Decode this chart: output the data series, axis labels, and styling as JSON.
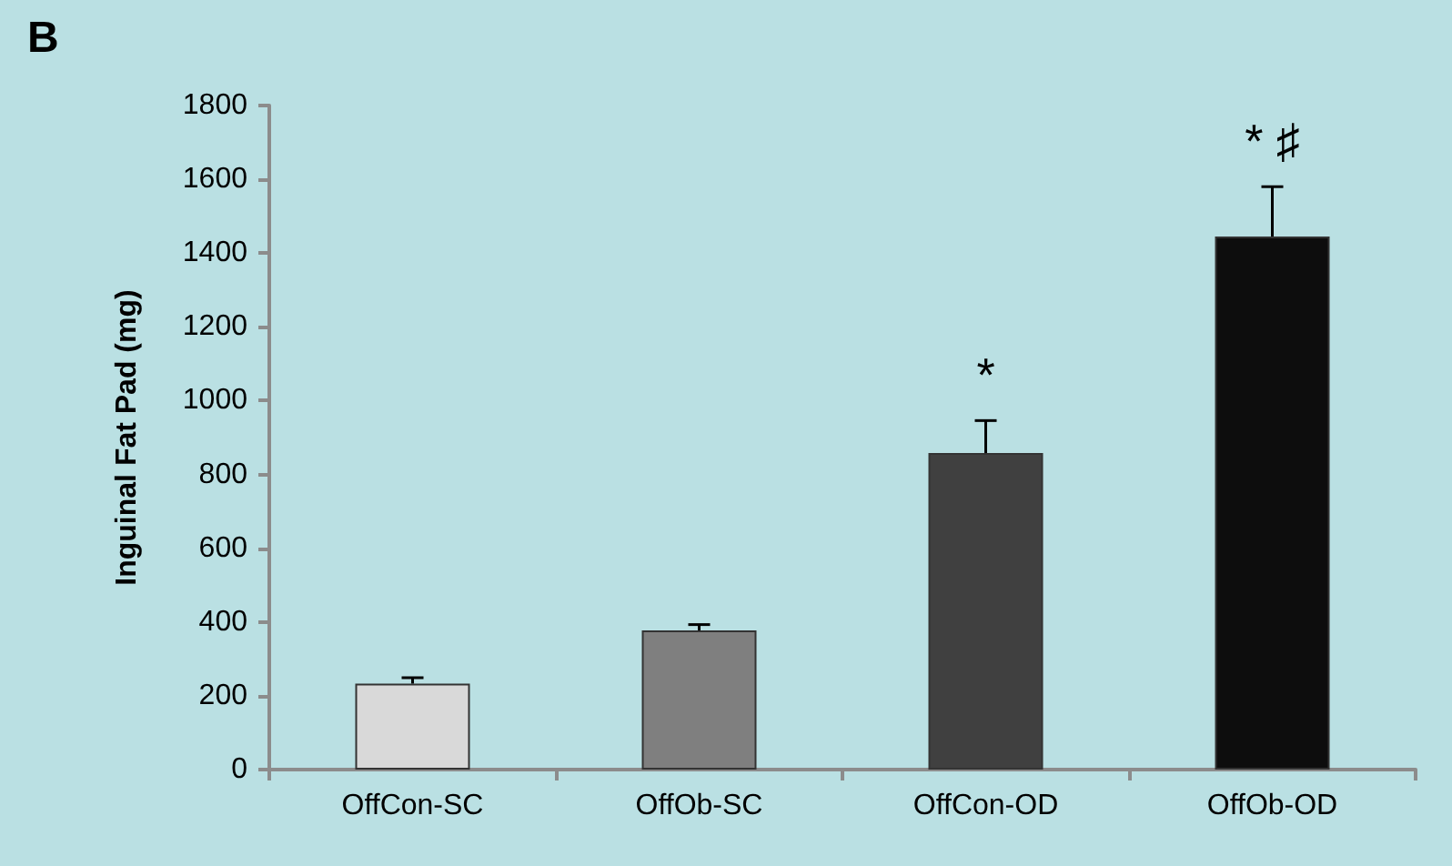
{
  "chart_data": {
    "type": "bar",
    "title": "B",
    "ylabel": "Inguinal Fat Pad (mg)",
    "categories": [
      "OffCon-SC",
      "OffOb-SC",
      "OffCon-OD",
      "OffOb-OD"
    ],
    "values": [
      233,
      377,
      858,
      1445
    ],
    "colors": [
      "#d9d9d9",
      "#7f7f7f",
      "#404040",
      "#0d0d0d"
    ],
    "errors": [
      [
        233,
        249
      ],
      [
        377,
        393
      ],
      [
        858,
        946
      ],
      [
        1445,
        1580
      ]
    ],
    "ylim": [
      0,
      1800
    ],
    "yticks": [
      0,
      200,
      400,
      600,
      800,
      1000,
      1200,
      1400,
      1600,
      1800
    ],
    "grid": false,
    "annotations": [
      "*",
      "* ♯"
    ]
  }
}
